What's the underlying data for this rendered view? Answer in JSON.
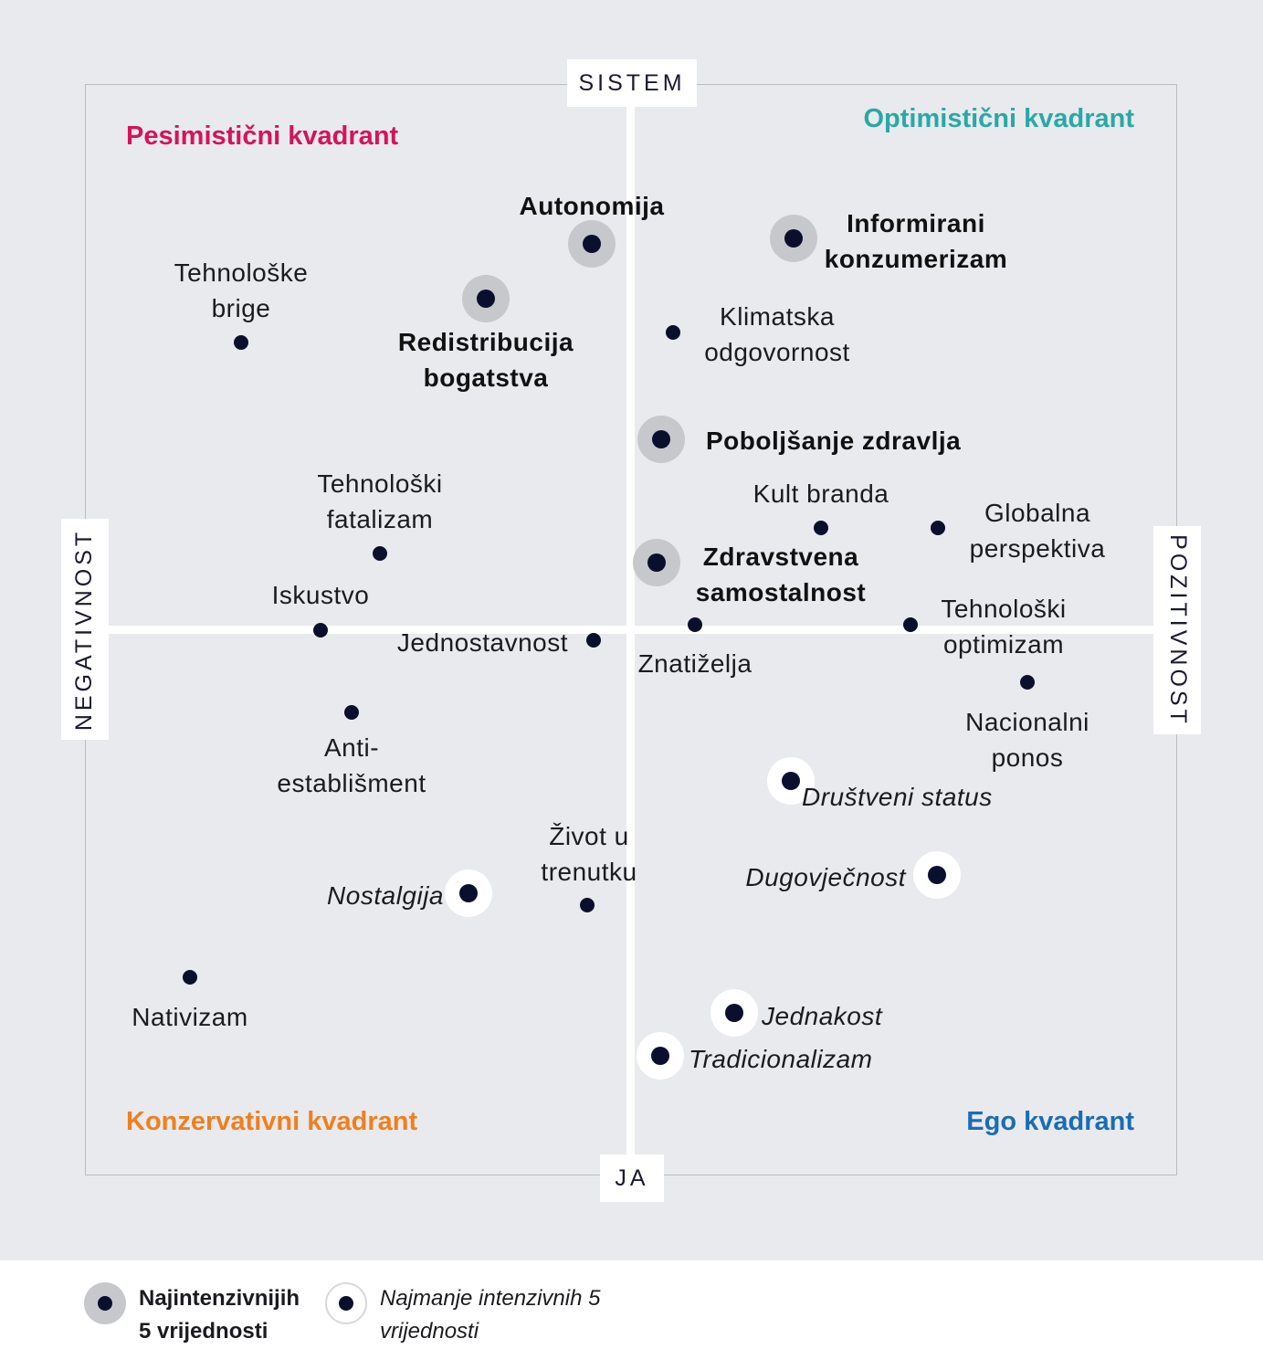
{
  "axes": {
    "top": "SISTEM",
    "bottom": "JA",
    "left": "NEGATIVNOST",
    "right": "POZITIVNOST"
  },
  "quadrants": {
    "top_left": {
      "label": "Pesimistični kvadrant",
      "color": "#d4145a"
    },
    "top_right": {
      "label": "Optimistični kvadrant",
      "color": "#2aa8a5"
    },
    "bottom_left": {
      "label": "Konzervativni kvadrant",
      "color": "#f07f1e"
    },
    "bottom_right": {
      "label": "Ego kvadrant",
      "color": "#1a6cb5"
    }
  },
  "points": [
    {
      "id": "autonomija",
      "lines": [
        "Autonomija"
      ],
      "kind": "most"
    },
    {
      "id": "informirani",
      "lines": [
        "Informirani",
        "konzumerizam"
      ],
      "kind": "most"
    },
    {
      "id": "tehnoloske-brige",
      "lines": [
        "Tehnološke",
        "brige"
      ],
      "kind": "normal"
    },
    {
      "id": "redistribucija",
      "lines": [
        "Redistribucija",
        "bogatstva"
      ],
      "kind": "most"
    },
    {
      "id": "klimatska",
      "lines": [
        "Klimatska",
        "odgovornost"
      ],
      "kind": "normal"
    },
    {
      "id": "poboljsanje",
      "lines": [
        "Poboljšanje zdravlja"
      ],
      "kind": "most"
    },
    {
      "id": "tehnoloski-fatalizam",
      "lines": [
        "Tehnološki",
        "fatalizam"
      ],
      "kind": "normal"
    },
    {
      "id": "kult-branda",
      "lines": [
        "Kult branda"
      ],
      "kind": "normal"
    },
    {
      "id": "globalna",
      "lines": [
        "Globalna",
        "perspektiva"
      ],
      "kind": "normal"
    },
    {
      "id": "zdravstvena",
      "lines": [
        "Zdravstvena",
        "samostalnost"
      ],
      "kind": "most"
    },
    {
      "id": "iskustvo",
      "lines": [
        "Iskustvo"
      ],
      "kind": "normal"
    },
    {
      "id": "jednostavnost",
      "lines": [
        "Jednostavnost"
      ],
      "kind": "normal"
    },
    {
      "id": "znatizelja",
      "lines": [
        "Znatiželja"
      ],
      "kind": "normal"
    },
    {
      "id": "tehnoloski-optimizam",
      "lines": [
        "Tehnološki",
        "optimizam"
      ],
      "kind": "normal"
    },
    {
      "id": "nacionalni",
      "lines": [
        "Nacionalni",
        "ponos"
      ],
      "kind": "normal"
    },
    {
      "id": "anti",
      "lines": [
        "Anti-",
        "establišment"
      ],
      "kind": "normal"
    },
    {
      "id": "drustveni",
      "lines": [
        "Društveni status"
      ],
      "kind": "least"
    },
    {
      "id": "zivot",
      "lines": [
        "Život u",
        "trenutku"
      ],
      "kind": "normal"
    },
    {
      "id": "nostalgija",
      "lines": [
        "Nostalgija"
      ],
      "kind": "least"
    },
    {
      "id": "dugovjecnost",
      "lines": [
        "Dugovječnost"
      ],
      "kind": "least"
    },
    {
      "id": "nativizam",
      "lines": [
        "Nativizam"
      ],
      "kind": "normal"
    },
    {
      "id": "jednakost",
      "lines": [
        "Jednakost"
      ],
      "kind": "least"
    },
    {
      "id": "tradicionalizam",
      "lines": [
        "Tradicionalizam"
      ],
      "kind": "least"
    }
  ],
  "legend": {
    "most": {
      "line1": "Najintenzivnijih",
      "line2": "5 vrijednosti"
    },
    "least": {
      "line1": "Najmanje intenzivnih 5",
      "line2": "vrijednosti"
    }
  }
}
